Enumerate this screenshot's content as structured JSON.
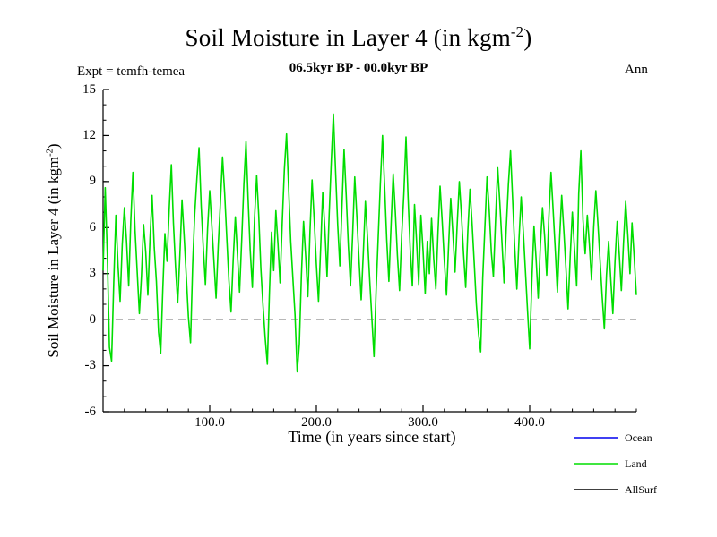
{
  "chart_data": {
    "type": "line",
    "title": {
      "prefix": "Soil Moisture in Layer 4 (in kgm",
      "sup": "-2",
      "suffix": ")"
    },
    "annotations": {
      "experiment": "Expt = temfh-temea",
      "date_range": "06.5kyr BP - 00.0kyr BP",
      "season": "Ann"
    },
    "xlabel": "Time (in years since start)",
    "ylabel": {
      "prefix": "Soil Moisture in Layer 4 (in kgm",
      "sup": "-2",
      "suffix": ")"
    },
    "xlim": [
      0,
      500
    ],
    "ylim": [
      -6,
      15
    ],
    "xticks": {
      "values": [
        100,
        200,
        300,
        400
      ],
      "labels": [
        "100.0",
        "200.0",
        "300.0",
        "400.0"
      ],
      "minor_step": 20
    },
    "yticks": {
      "values": [
        -6,
        -3,
        0,
        3,
        6,
        9,
        12,
        15
      ],
      "labels": [
        "-6",
        "-3",
        "0",
        "3",
        "6",
        "9",
        "12",
        "15"
      ],
      "minor_step": 1
    },
    "zero_line": {
      "y": 0,
      "style": "dashed",
      "color": "#444444"
    },
    "grid": false,
    "legend": {
      "position": "bottom-right",
      "entries": [
        {
          "label": "Ocean",
          "color": "#0000ee"
        },
        {
          "label": "Land",
          "color": "#00dd00"
        },
        {
          "label": "AllSurf",
          "color": "#000000"
        }
      ]
    },
    "series": [
      {
        "name": "Ocean",
        "color": "#0000ee",
        "x_start": 0,
        "x_step": 2,
        "values": []
      },
      {
        "name": "Land",
        "color": "#00dd00",
        "x_start": 0,
        "x_step": 2,
        "values": [
          3.2,
          8.6,
          4.1,
          -1.8,
          -2.7,
          2.4,
          6.8,
          3.5,
          1.2,
          4.9,
          7.3,
          5.1,
          2.2,
          6.4,
          9.6,
          5.8,
          3.1,
          0.4,
          2.8,
          6.2,
          4.4,
          1.6,
          5.3,
          8.1,
          4.7,
          2.5,
          -0.8,
          -2.2,
          1.9,
          5.6,
          3.8,
          7.2,
          10.1,
          6.3,
          3.4,
          1.1,
          4.2,
          7.8,
          5.5,
          2.9,
          0.2,
          -1.5,
          3.6,
          6.9,
          9.2,
          11.2,
          7.4,
          4.6,
          2.3,
          5.9,
          8.4,
          6.1,
          3.7,
          1.4,
          4.8,
          7.6,
          10.6,
          8.2,
          5.4,
          2.6,
          0.5,
          3.9,
          6.7,
          4.3,
          1.8,
          5.2,
          8.8,
          11.6,
          7.9,
          4.5,
          2.1,
          6.6,
          9.4,
          6.8,
          3.3,
          0.9,
          -1.2,
          -2.9,
          1.7,
          5.7,
          3.2,
          7.1,
          4.9,
          2.4,
          6.3,
          9.8,
          12.1,
          8.5,
          5.1,
          2.7,
          0.3,
          -3.4,
          -1.6,
          2.9,
          6.4,
          4.1,
          1.5,
          5.8,
          9.1,
          6.5,
          3.6,
          1.2,
          4.7,
          8.3,
          5.9,
          2.8,
          6.9,
          10.4,
          13.4,
          9.7,
          6.2,
          3.5,
          7.4,
          11.1,
          8.1,
          4.8,
          2.2,
          5.6,
          9.3,
          6.7,
          3.9,
          1.3,
          4.4,
          7.7,
          5.3,
          2.6,
          0.1,
          -2.4,
          1.8,
          5.4,
          8.9,
          12.0,
          8.6,
          5.2,
          2.5,
          6.1,
          9.5,
          7.0,
          4.2,
          1.9,
          5.5,
          8.2,
          11.9,
          8.0,
          4.6,
          2.2,
          7.5,
          5.0,
          2.3,
          6.8,
          4.5,
          1.7,
          5.1,
          3.0,
          6.6,
          4.0,
          2.0,
          5.7,
          8.7,
          6.4,
          3.8,
          1.6,
          4.9,
          7.9,
          5.6,
          3.1,
          6.2,
          9.0,
          6.9,
          4.3,
          2.1,
          5.8,
          8.5,
          6.3,
          3.7,
          1.0,
          -0.9,
          -2.1,
          2.7,
          6.0,
          9.3,
          7.2,
          4.4,
          2.8,
          6.5,
          9.9,
          7.6,
          5.0,
          2.4,
          5.9,
          8.8,
          11.0,
          7.8,
          4.7,
          2.0,
          5.3,
          8.0,
          5.7,
          3.2,
          0.6,
          -1.9,
          2.5,
          6.1,
          4.0,
          1.4,
          4.8,
          7.3,
          5.4,
          2.9,
          6.7,
          9.6,
          7.1,
          4.5,
          1.8,
          5.2,
          8.1,
          5.8,
          3.3,
          0.7,
          4.1,
          7.0,
          4.6,
          2.2,
          8.2,
          11.0,
          6.5,
          4.3,
          6.8,
          4.9,
          2.6,
          6.0,
          8.4,
          6.2,
          3.9,
          1.5,
          -0.6,
          2.9,
          5.1,
          2.7,
          0.4,
          3.8,
          6.4,
          4.2,
          1.9,
          5.0,
          7.7,
          5.5,
          3.0,
          6.3,
          4.1,
          1.6
        ]
      },
      {
        "name": "AllSurf",
        "color": "#000000",
        "x_start": 0,
        "x_step": 2,
        "values": []
      }
    ]
  }
}
